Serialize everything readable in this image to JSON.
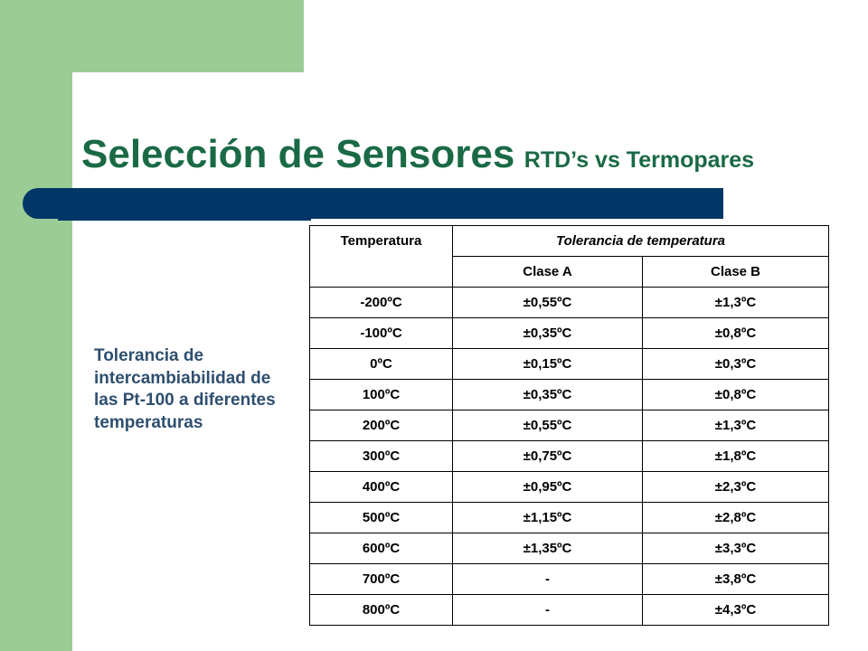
{
  "slide": {
    "title_main": "Selección de Sensores",
    "title_sub": "RTD’s vs Termopares",
    "side_note": "Tolerancia de intercambiabilidad de las Pt-100 a diferentes temperaturas"
  },
  "table": {
    "header_temperature": "Temperatura",
    "header_tolerance": "Tolerancia de temperatura",
    "header_class_a": "Clase A",
    "header_class_b": "Clase B",
    "rows": [
      {
        "temp": "-200ºC",
        "a": "±0,55ºC",
        "b": "±1,3ºC"
      },
      {
        "temp": "-100ºC",
        "a": "±0,35ºC",
        "b": "±0,8ºC"
      },
      {
        "temp": "0ºC",
        "a": "±0,15ºC",
        "b": "±0,3ºC"
      },
      {
        "temp": "100ºC",
        "a": "±0,35ºC",
        "b": "±0,8ºC"
      },
      {
        "temp": "200ºC",
        "a": "±0,55ºC",
        "b": "±1,3ºC"
      },
      {
        "temp": "300ºC",
        "a": "±0,75ºC",
        "b": "±1,8ºC"
      },
      {
        "temp": "400ºC",
        "a": "±0,95ºC",
        "b": "±2,3ºC"
      },
      {
        "temp": "500ºC",
        "a": "±1,15ºC",
        "b": "±2,8ºC"
      },
      {
        "temp": "600ºC",
        "a": "±1,35ºC",
        "b": "±3,3ºC"
      },
      {
        "temp": "700ºC",
        "a": "-",
        "b": "±3,8ºC"
      },
      {
        "temp": "800ºC",
        "a": "-",
        "b": "±4,3ºC"
      }
    ]
  },
  "colors": {
    "green_panel": "#9ccc96",
    "title_green": "#1a6a45",
    "navy_bar": "#003767",
    "side_text": "#2f4f6f"
  }
}
